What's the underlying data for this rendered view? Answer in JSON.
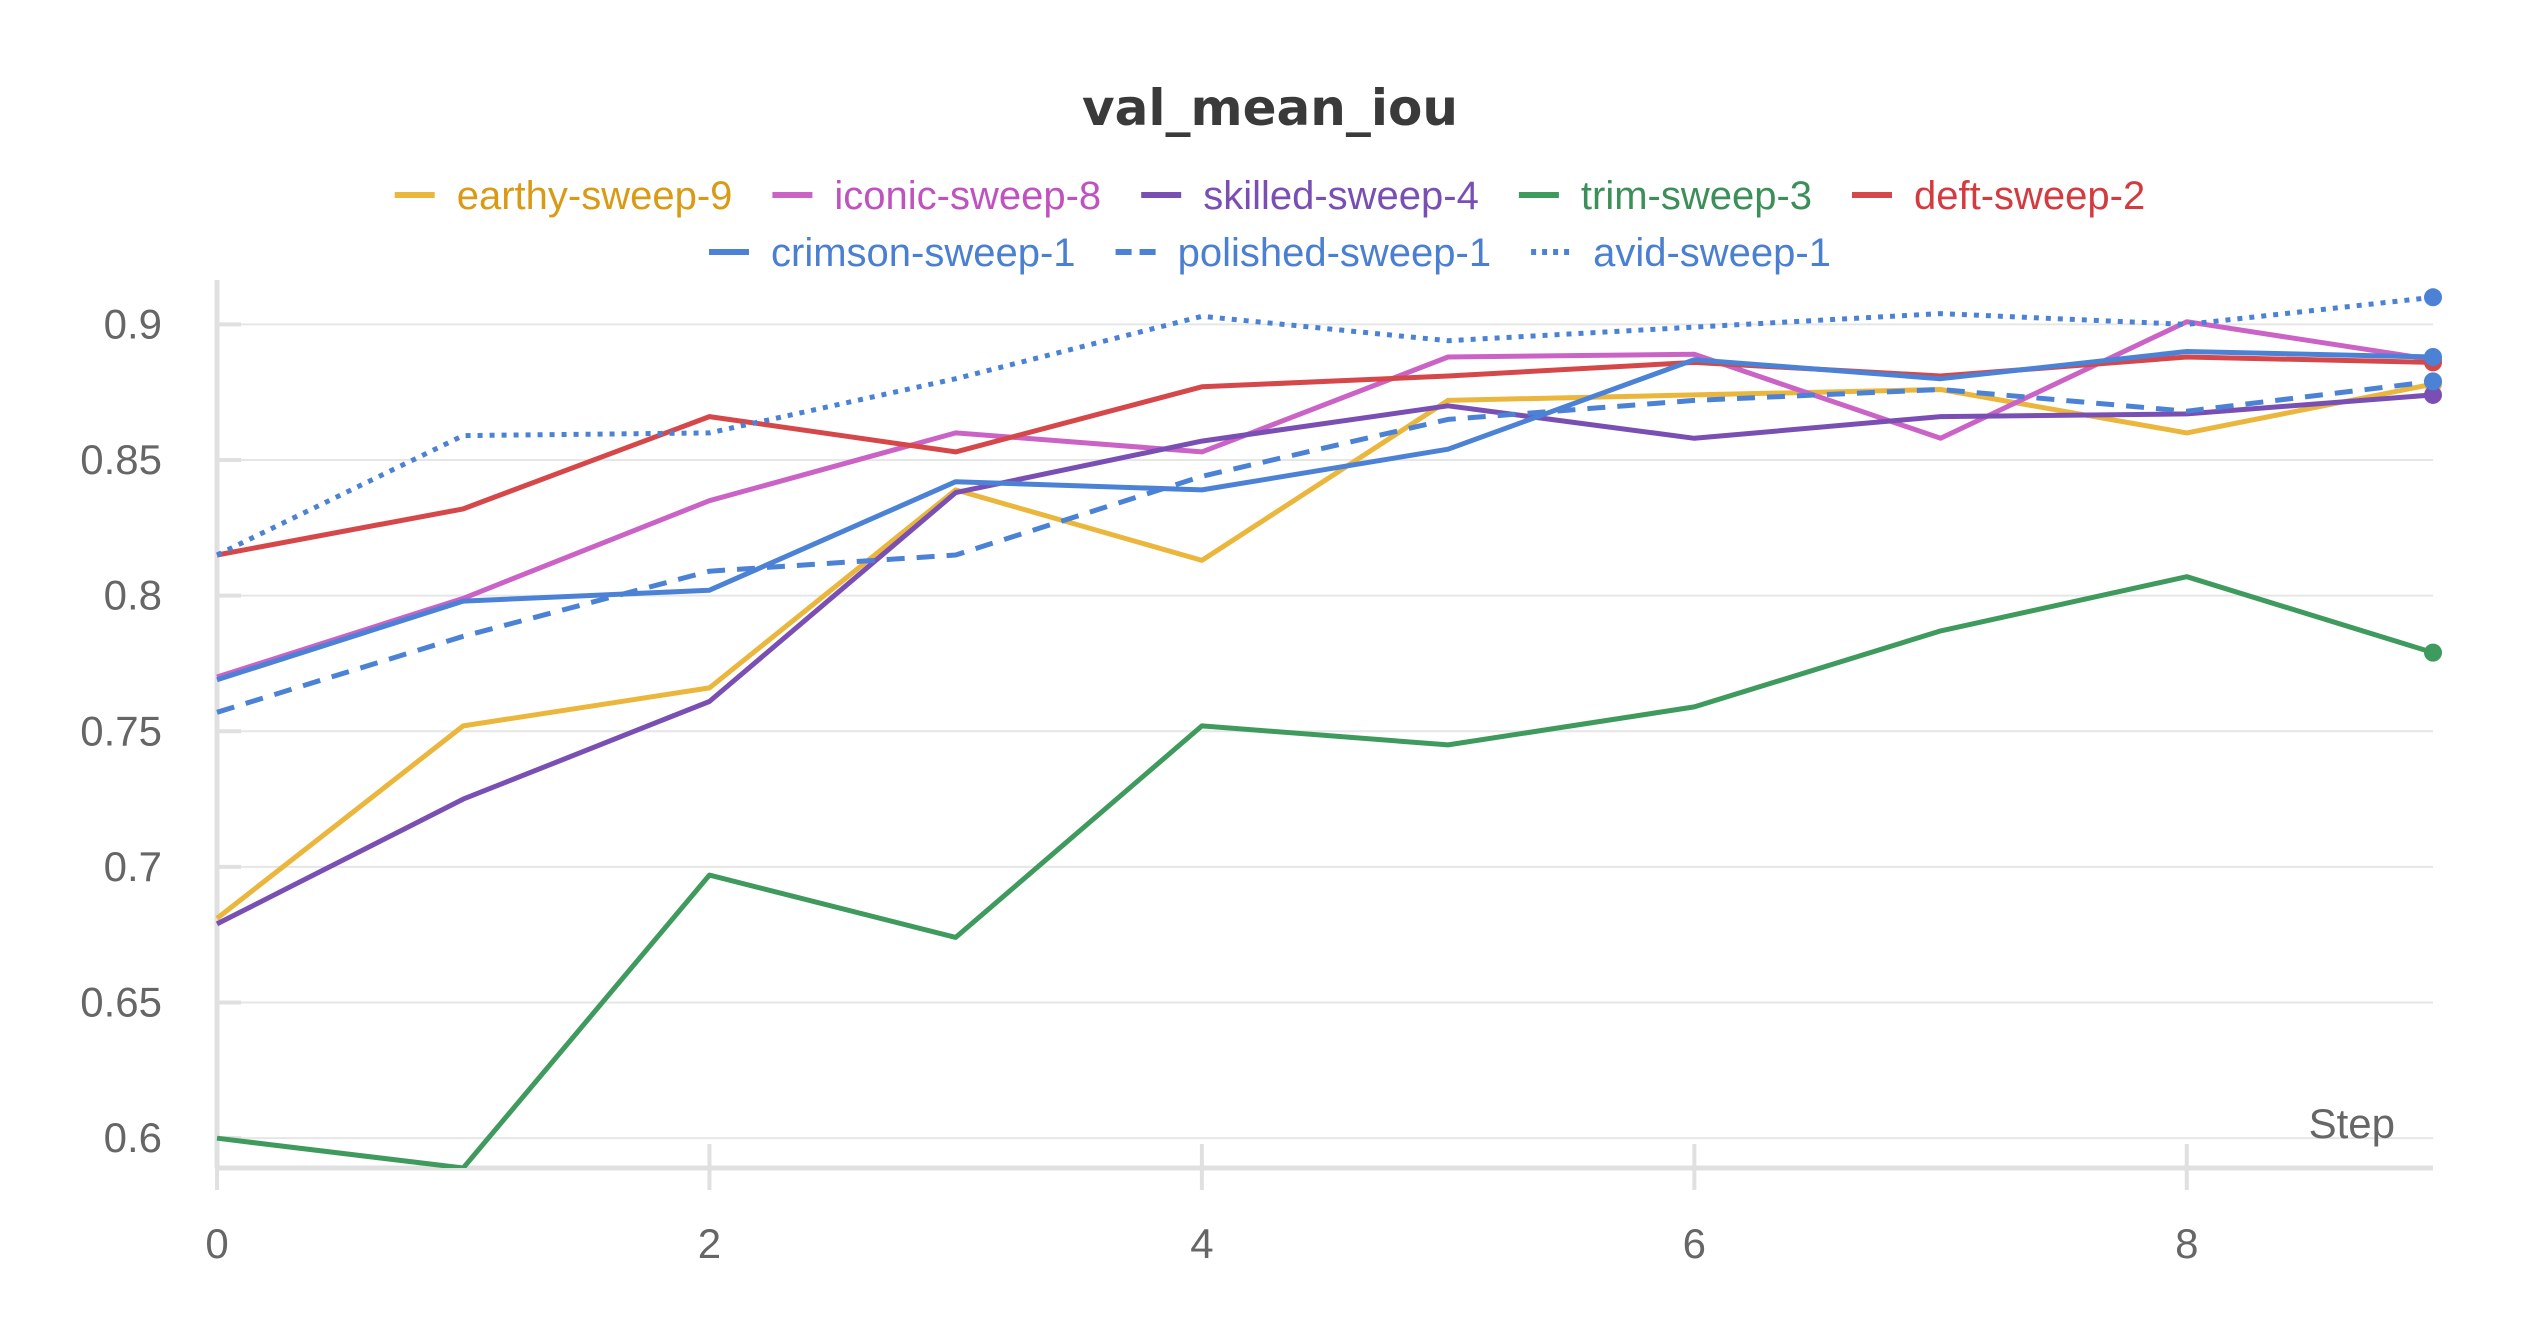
{
  "chart_data": {
    "type": "line",
    "title": "val_mean_iou",
    "xlabel": "Step",
    "ylabel": "",
    "xlim": [
      0,
      9
    ],
    "ylim": [
      0.589,
      0.909
    ],
    "x": [
      0,
      1,
      2,
      3,
      4,
      5,
      6,
      7,
      8,
      9
    ],
    "x_ticks": [
      0,
      2,
      4,
      6,
      8
    ],
    "y_ticks": [
      0.6,
      0.65,
      0.7,
      0.75,
      0.8,
      0.85,
      0.9
    ],
    "y_tick_labels": [
      "0.6",
      "0.65",
      "0.7",
      "0.75",
      "0.8",
      "0.85",
      "0.9"
    ],
    "grid": true,
    "legend_position": "top",
    "series": [
      {
        "name": "earthy-sweep-9",
        "color": "#ebb63c",
        "text_color": "#d99a15",
        "style": "solid",
        "values": [
          0.681,
          0.752,
          0.766,
          0.839,
          0.813,
          0.872,
          0.874,
          0.876,
          0.86,
          0.878
        ]
      },
      {
        "name": "iconic-sweep-8",
        "color": "#cb63c7",
        "text_color": "#c052c0",
        "style": "solid",
        "values": [
          0.77,
          0.799,
          0.835,
          0.86,
          0.853,
          0.888,
          0.889,
          0.858,
          0.901,
          0.887
        ]
      },
      {
        "name": "skilled-sweep-4",
        "color": "#7a4fb4",
        "text_color": "#7a4fb4",
        "style": "solid",
        "values": [
          0.679,
          0.725,
          0.761,
          0.838,
          0.857,
          0.87,
          0.858,
          0.866,
          0.867,
          0.874
        ]
      },
      {
        "name": "trim-sweep-3",
        "color": "#3f9a5e",
        "text_color": "#3c8f59",
        "style": "solid",
        "values": [
          0.6,
          0.589,
          0.697,
          0.674,
          0.752,
          0.745,
          0.759,
          0.787,
          0.807,
          0.779
        ]
      },
      {
        "name": "deft-sweep-2",
        "color": "#d6474a",
        "text_color": "#d43b3f",
        "style": "solid",
        "values": [
          0.815,
          0.832,
          0.866,
          0.853,
          0.877,
          0.881,
          0.886,
          0.881,
          0.888,
          0.886
        ]
      },
      {
        "name": "crimson-sweep-1",
        "color": "#4b82d6",
        "text_color": "#4a7fd1",
        "style": "solid",
        "values": [
          0.769,
          0.798,
          0.802,
          0.842,
          0.839,
          0.854,
          0.887,
          0.88,
          0.89,
          0.888
        ]
      },
      {
        "name": "polished-sweep-1",
        "color": "#4b82d6",
        "text_color": "#4a7fd1",
        "style": "dashed",
        "values": [
          0.757,
          0.785,
          0.809,
          0.815,
          0.844,
          0.865,
          0.872,
          0.876,
          0.868,
          0.879
        ]
      },
      {
        "name": "avid-sweep-1",
        "color": "#4b82d6",
        "text_color": "#4a7fd1",
        "style": "dotted",
        "values": [
          0.815,
          0.859,
          0.86,
          0.88,
          0.903,
          0.894,
          0.899,
          0.904,
          0.9,
          0.91
        ]
      }
    ]
  }
}
